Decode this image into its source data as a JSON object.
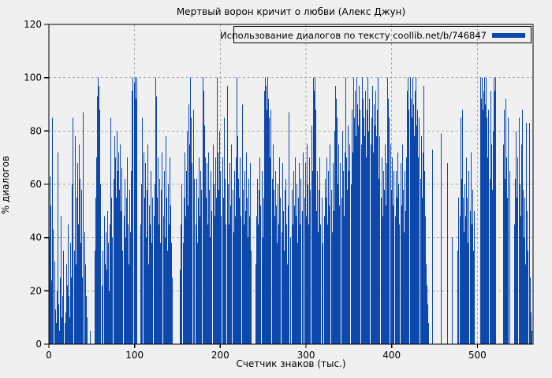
{
  "chart_data": {
    "type": "bar",
    "title": "Мертвый ворон кричит о любви (Алекс Джун)",
    "xlabel": "Счетчик знаков (тыс.)",
    "ylabel": "% диалогов",
    "legend": "Использование диалогов по тексту coollib.net/b/746847",
    "legend_position": "top-right",
    "grid": true,
    "xlim": [
      0,
      565
    ],
    "ylim": [
      0,
      120
    ],
    "x_ticks": [
      0,
      100,
      200,
      300,
      400,
      500
    ],
    "y_ticks": [
      0,
      20,
      40,
      60,
      80,
      100,
      120
    ],
    "x_step": 1,
    "colors": {
      "bar": "#0d48ad",
      "background": "#f0f0f0",
      "grid": "#a8a8a8",
      "border": "#000000"
    },
    "values": [
      40,
      63,
      52,
      24,
      85,
      43,
      31,
      13,
      8,
      20,
      72,
      15,
      5,
      25,
      48,
      10,
      18,
      35,
      8,
      12,
      30,
      22,
      45,
      18,
      10,
      38,
      25,
      60,
      85,
      35,
      78,
      30,
      55,
      68,
      45,
      75,
      62,
      38,
      58,
      25,
      87,
      42,
      30,
      18,
      10,
      0,
      0,
      0,
      5,
      0,
      0,
      0,
      0,
      35,
      55,
      70,
      93,
      100,
      97,
      88,
      60,
      0,
      22,
      35,
      48,
      30,
      42,
      28,
      50,
      38,
      20,
      45,
      85,
      55,
      40,
      62,
      78,
      70,
      55,
      80,
      65,
      72,
      58,
      75,
      50,
      66,
      35,
      48,
      62,
      40,
      55,
      70,
      45,
      30,
      58,
      42,
      65,
      95,
      100,
      98,
      100,
      92,
      100,
      0,
      0,
      0,
      0,
      45,
      60,
      85,
      72,
      55,
      68,
      40,
      58,
      75,
      30,
      52,
      45,
      65,
      38,
      55,
      48,
      60,
      100,
      93,
      55,
      70,
      45,
      62,
      38,
      58,
      72,
      48,
      65,
      40,
      78,
      55,
      35,
      60,
      45,
      70,
      52,
      38,
      25,
      0,
      0,
      0,
      0,
      0,
      0,
      0,
      0,
      28,
      45,
      60,
      38,
      55,
      72,
      48,
      65,
      80,
      52,
      90,
      75,
      100,
      85,
      68,
      88,
      62,
      0,
      45,
      62,
      38,
      55,
      70,
      48,
      65,
      58,
      100,
      95,
      82,
      70,
      55,
      68,
      45,
      72,
      58,
      40,
      65,
      50,
      75,
      60,
      48,
      70,
      55,
      100,
      72,
      58,
      80,
      65,
      48,
      70,
      55,
      85,
      62,
      45,
      0,
      97,
      60,
      45,
      68,
      52,
      75,
      58,
      42,
      65,
      48,
      70,
      100,
      78,
      62,
      55,
      70,
      48,
      90,
      58,
      45,
      65,
      50,
      72,
      55,
      40,
      62,
      48,
      68,
      35,
      0,
      0,
      0,
      0,
      30,
      48,
      62,
      45,
      58,
      70,
      52,
      65,
      40,
      55,
      95,
      100,
      97,
      88,
      100,
      92,
      85,
      70,
      88,
      62,
      75,
      58,
      48,
      65,
      52,
      38,
      60,
      45,
      70,
      55,
      42,
      68,
      50,
      35,
      58,
      62,
      45,
      30,
      52,
      87,
      0,
      40,
      58,
      45,
      65,
      52,
      70,
      48,
      60,
      38,
      55,
      68,
      45,
      62,
      50,
      72,
      0,
      55,
      68,
      48,
      75,
      60,
      45,
      70,
      58,
      82,
      65,
      100,
      95,
      100,
      88,
      50,
      65,
      42,
      58,
      70,
      45,
      55,
      38,
      0,
      48,
      62,
      55,
      70,
      45,
      65,
      52,
      75,
      58,
      42,
      68,
      50,
      80,
      97,
      92,
      85,
      60,
      75,
      52,
      68,
      55,
      80,
      65,
      48,
      72,
      100,
      70,
      58,
      82,
      65,
      75,
      60,
      88,
      72,
      100,
      85,
      95,
      78,
      100,
      90,
      82,
      97,
      88,
      75,
      100,
      92,
      85,
      78,
      95,
      70,
      88,
      100,
      80,
      92,
      75,
      85,
      97,
      72,
      90,
      82,
      95,
      78,
      88,
      100,
      62,
      78,
      55,
      70,
      48,
      65,
      58,
      75,
      52,
      68,
      100,
      92,
      85,
      75,
      58,
      70,
      52,
      65,
      0,
      48,
      65,
      55,
      72,
      60,
      45,
      68,
      52,
      75,
      58,
      42,
      65,
      50,
      70,
      95,
      100,
      88,
      100,
      92,
      85,
      100,
      90,
      78,
      95,
      100,
      82,
      88,
      70,
      85,
      62,
      78,
      55,
      72,
      97,
      65,
      48,
      30,
      22,
      15,
      8,
      0,
      0,
      0,
      73,
      0,
      0,
      0,
      0,
      0,
      0,
      0,
      0,
      0,
      79,
      0,
      0,
      0,
      0,
      0,
      0,
      0,
      68,
      0,
      0,
      0,
      0,
      40,
      0,
      0,
      0,
      0,
      0,
      0,
      35,
      55,
      48,
      85,
      62,
      88,
      55,
      42,
      60,
      48,
      70,
      55,
      38,
      65,
      50,
      72,
      45,
      58,
      35,
      50,
      0,
      0,
      0,
      0,
      0,
      0,
      100,
      92,
      100,
      88,
      95,
      100,
      90,
      100,
      85,
      70,
      88,
      62,
      95,
      75,
      58,
      80,
      100,
      95,
      100,
      0,
      0,
      0,
      0,
      0,
      0,
      0,
      0,
      75,
      88,
      62,
      92,
      70,
      55,
      85,
      65,
      0,
      0,
      0,
      0,
      0,
      45,
      62,
      80,
      55,
      70,
      85,
      60,
      48,
      75,
      88,
      58,
      40,
      55,
      30,
      83,
      50,
      35,
      83,
      25,
      12,
      5,
      0
    ]
  }
}
